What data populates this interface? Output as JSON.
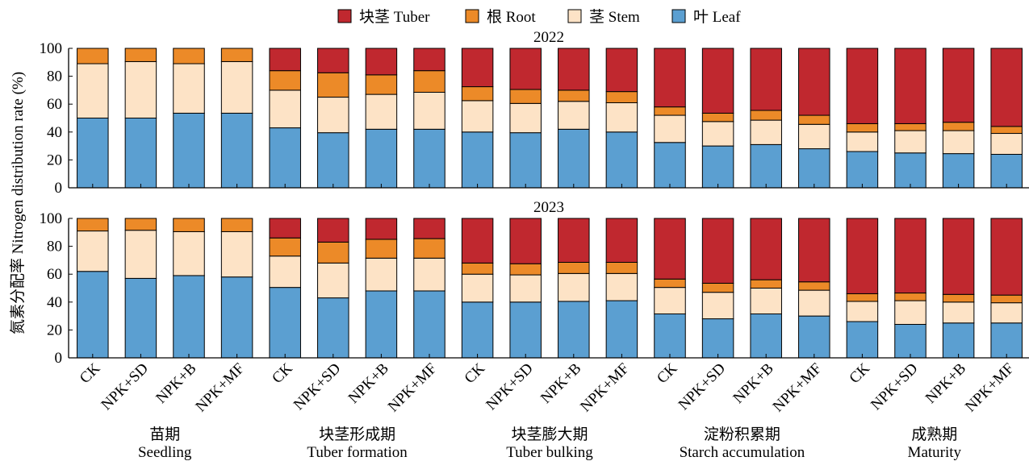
{
  "ylabel": "氮素分配率 Nitrogen distribution rate (%)",
  "legend": [
    {
      "key": "tuber",
      "label": "块茎 Tuber"
    },
    {
      "key": "root",
      "label": "根 Root"
    },
    {
      "key": "stem",
      "label": "茎 Stem"
    },
    {
      "key": "leaf",
      "label": "叶 Leaf"
    }
  ],
  "colors": {
    "leaf": "#5b9fd1",
    "stem": "#fde3c6",
    "root": "#ec8a28",
    "tuber": "#c0282f",
    "stroke": "#000000"
  },
  "yticks": [
    "0",
    "20",
    "40",
    "60",
    "80",
    "100"
  ],
  "stages": [
    {
      "zh": "苗期",
      "en": "Seedling"
    },
    {
      "zh": "块茎形成期",
      "en": "Tuber formation"
    },
    {
      "zh": "块茎膨大期",
      "en": "Tuber bulking"
    },
    {
      "zh": "淀粉积累期",
      "en": "Starch accumulation"
    },
    {
      "zh": "成熟期",
      "en": "Maturity"
    }
  ],
  "chart_data": {
    "type": "bar",
    "stacked": true,
    "ylim": [
      0,
      100
    ],
    "treatments": [
      "CK",
      "NPK+SD",
      "NPK+B",
      "NPK+MF"
    ],
    "panels": [
      {
        "year": "2022",
        "stages": [
          {
            "leaf": [
              50,
              50,
              53.5,
              53.5
            ],
            "stem": [
              39,
              40.5,
              35.5,
              37
            ],
            "root": [
              11,
              9.5,
              11,
              9.5
            ],
            "tuber": [
              0,
              0,
              0,
              0
            ]
          },
          {
            "leaf": [
              43,
              39.5,
              42,
              42
            ],
            "stem": [
              27,
              25.5,
              25,
              26.5
            ],
            "root": [
              14,
              17.5,
              14,
              15.5
            ],
            "tuber": [
              16,
              17.5,
              19,
              16
            ]
          },
          {
            "leaf": [
              40,
              39.5,
              42,
              40
            ],
            "stem": [
              22.5,
              21,
              20,
              21
            ],
            "root": [
              10,
              10,
              8,
              8
            ],
            "tuber": [
              27.5,
              29.5,
              30,
              31
            ]
          },
          {
            "leaf": [
              32.5,
              30,
              31,
              28
            ],
            "stem": [
              19.5,
              17.5,
              17.5,
              17.5
            ],
            "root": [
              6,
              6,
              7,
              6.5
            ],
            "tuber": [
              42,
              46.5,
              44.5,
              48
            ]
          },
          {
            "leaf": [
              26,
              25,
              24.5,
              24
            ],
            "stem": [
              14,
              16,
              16.5,
              15
            ],
            "root": [
              6,
              5,
              6,
              5
            ],
            "tuber": [
              54,
              54,
              53,
              56
            ]
          }
        ]
      },
      {
        "year": "2023",
        "stages": [
          {
            "leaf": [
              62,
              57,
              59,
              58
            ],
            "stem": [
              29,
              34.5,
              31.5,
              32.5
            ],
            "root": [
              9,
              8.5,
              9.5,
              9.5
            ],
            "tuber": [
              0,
              0,
              0,
              0
            ]
          },
          {
            "leaf": [
              50.5,
              43,
              48,
              48
            ],
            "stem": [
              22.5,
              25,
              23.5,
              23.5
            ],
            "root": [
              13,
              15,
              13.5,
              14
            ],
            "tuber": [
              14,
              17,
              15,
              14.5
            ]
          },
          {
            "leaf": [
              40,
              40,
              40.5,
              41
            ],
            "stem": [
              20,
              19.5,
              20,
              19.5
            ],
            "root": [
              8,
              8,
              8,
              8
            ],
            "tuber": [
              32,
              32.5,
              31.5,
              31.5
            ]
          },
          {
            "leaf": [
              31.5,
              28,
              31.5,
              30
            ],
            "stem": [
              19,
              19,
              18.5,
              18.5
            ],
            "root": [
              6,
              6.5,
              6,
              6
            ],
            "tuber": [
              43.5,
              46.5,
              44,
              45.5
            ]
          },
          {
            "leaf": [
              26,
              24,
              25,
              25
            ],
            "stem": [
              14.5,
              17,
              15,
              14.5
            ],
            "root": [
              5.5,
              5.5,
              5.5,
              5.5
            ],
            "tuber": [
              54,
              53.5,
              54.5,
              55
            ]
          }
        ]
      }
    ]
  }
}
